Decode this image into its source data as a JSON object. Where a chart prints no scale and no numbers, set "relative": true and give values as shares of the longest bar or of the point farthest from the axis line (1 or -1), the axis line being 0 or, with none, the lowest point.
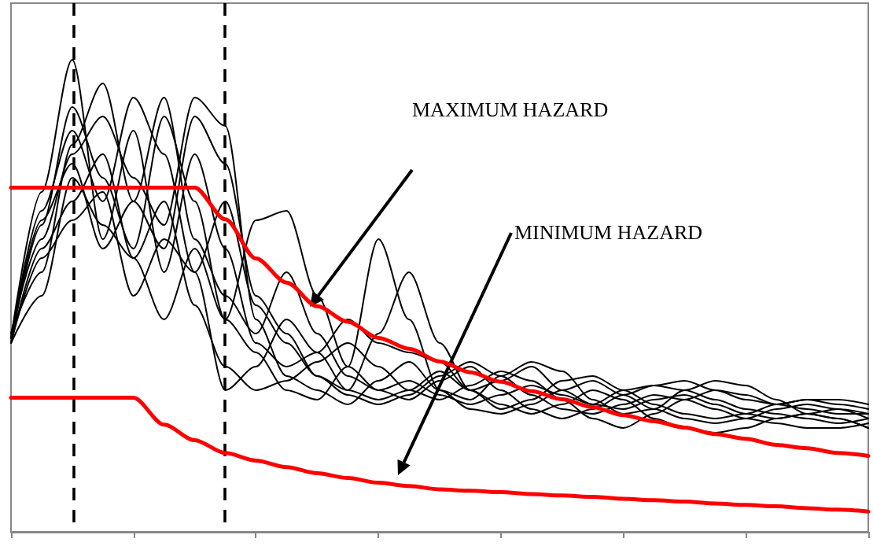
{
  "chart_data": {
    "type": "line",
    "relative": true,
    "marker": "none",
    "line_style": "solid",
    "grid": false,
    "categories": [
      null,
      null,
      null,
      null,
      null,
      null,
      null,
      null,
      null,
      null,
      null,
      null,
      null,
      null,
      null,
      null,
      null,
      null,
      null,
      null,
      null,
      null,
      null,
      null,
      null,
      null,
      null,
      null,
      null
    ],
    "series": [
      {
        "color": "#000000",
        "values": [
          0.41,
          0.72,
          1.0,
          0.62,
          0.85,
          0.55,
          0.8,
          0.6,
          0.4,
          0.35,
          0.38,
          0.45,
          0.4,
          0.38,
          0.36,
          0.3,
          0.32,
          0.35,
          0.3,
          0.27,
          0.3,
          0.31,
          0.32,
          0.3,
          0.28,
          0.27,
          0.28,
          0.28,
          0.27
        ]
      },
      {
        "color": "#000000",
        "values": [
          0.4,
          0.65,
          0.9,
          0.75,
          0.6,
          0.88,
          0.7,
          0.45,
          0.38,
          0.3,
          0.28,
          0.35,
          0.62,
          0.45,
          0.3,
          0.28,
          0.33,
          0.36,
          0.34,
          0.28,
          0.25,
          0.26,
          0.3,
          0.32,
          0.31,
          0.28,
          0.25,
          0.24,
          0.22
        ]
      },
      {
        "color": "#000000",
        "values": [
          0.42,
          0.55,
          0.82,
          0.95,
          0.7,
          0.6,
          0.88,
          0.78,
          0.5,
          0.42,
          0.33,
          0.3,
          0.42,
          0.55,
          0.4,
          0.3,
          0.26,
          0.28,
          0.32,
          0.33,
          0.3,
          0.27,
          0.25,
          0.24,
          0.25,
          0.27,
          0.28,
          0.27,
          0.26
        ]
      },
      {
        "color": "#000000",
        "values": [
          0.4,
          0.6,
          0.7,
          0.8,
          0.58,
          0.45,
          0.6,
          0.45,
          0.66,
          0.68,
          0.5,
          0.35,
          0.3,
          0.28,
          0.32,
          0.35,
          0.3,
          0.26,
          0.24,
          0.26,
          0.29,
          0.31,
          0.3,
          0.28,
          0.26,
          0.25,
          0.24,
          0.23,
          0.24
        ]
      },
      {
        "color": "#000000",
        "values": [
          0.41,
          0.68,
          0.85,
          0.7,
          0.92,
          0.8,
          0.55,
          0.3,
          0.35,
          0.45,
          0.38,
          0.3,
          0.28,
          0.3,
          0.34,
          0.3,
          0.27,
          0.25,
          0.27,
          0.3,
          0.28,
          0.24,
          0.22,
          0.21,
          0.22,
          0.24,
          0.25,
          0.24,
          0.22
        ]
      },
      {
        "color": "#000000",
        "values": [
          0.4,
          0.5,
          0.75,
          0.65,
          0.58,
          0.7,
          0.48,
          0.35,
          0.3,
          0.32,
          0.36,
          0.4,
          0.35,
          0.3,
          0.28,
          0.31,
          0.34,
          0.32,
          0.28,
          0.24,
          0.22,
          0.25,
          0.28,
          0.3,
          0.29,
          0.27,
          0.26,
          0.25,
          0.25
        ]
      },
      {
        "color": "#000000",
        "values": [
          0.42,
          0.62,
          0.8,
          0.88,
          0.75,
          0.65,
          0.92,
          0.86,
          0.45,
          0.33,
          0.3,
          0.27,
          0.32,
          0.36,
          0.3,
          0.26,
          0.25,
          0.27,
          0.3,
          0.32,
          0.29,
          0.26,
          0.24,
          0.23,
          0.24,
          0.26,
          0.27,
          0.26,
          0.24
        ]
      },
      {
        "color": "#000000",
        "values": [
          0.4,
          0.58,
          0.66,
          0.72,
          0.5,
          0.62,
          0.55,
          0.7,
          0.48,
          0.4,
          0.33,
          0.29,
          0.27,
          0.29,
          0.33,
          0.36,
          0.33,
          0.29,
          0.26,
          0.25,
          0.27,
          0.29,
          0.28,
          0.26,
          0.24,
          0.23,
          0.22,
          0.22,
          0.23
        ]
      },
      {
        "color": "#000000",
        "values": [
          0.41,
          0.66,
          0.78,
          0.6,
          0.7,
          0.92,
          0.62,
          0.5,
          0.42,
          0.55,
          0.42,
          0.33,
          0.3,
          0.32,
          0.29,
          0.27,
          0.29,
          0.31,
          0.29,
          0.27,
          0.26,
          0.28,
          0.29,
          0.27,
          0.25,
          0.24,
          0.25,
          0.26,
          0.25
        ]
      },
      {
        "color": "#ff0000",
        "values": [
          0.729,
          0.729,
          0.729,
          0.729,
          0.729,
          0.729,
          0.729,
          0.662,
          0.579,
          0.528,
          0.478,
          0.445,
          0.411,
          0.388,
          0.361,
          0.338,
          0.318,
          0.298,
          0.281,
          0.264,
          0.247,
          0.234,
          0.221,
          0.207,
          0.197,
          0.184,
          0.177,
          0.167,
          0.161
        ]
      },
      {
        "color": "#ff0000",
        "values": [
          0.284,
          0.284,
          0.284,
          0.284,
          0.284,
          0.227,
          0.194,
          0.167,
          0.151,
          0.137,
          0.124,
          0.114,
          0.104,
          0.097,
          0.09,
          0.087,
          0.084,
          0.08,
          0.077,
          0.074,
          0.07,
          0.067,
          0.064,
          0.06,
          0.057,
          0.054,
          0.05,
          0.047,
          0.043
        ]
      }
    ],
    "annotations": [
      "MAXIMUM HAZARD",
      "MINIMUM HAZARD"
    ]
  }
}
